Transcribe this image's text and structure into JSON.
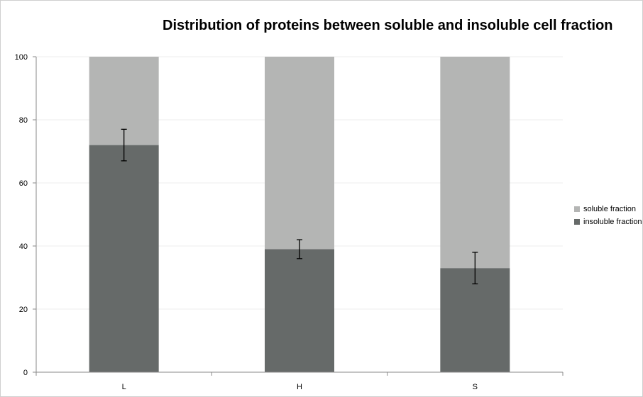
{
  "chart_data": {
    "type": "bar",
    "stacked": true,
    "title": "Distribution of proteins between soluble and insoluble cell fraction",
    "xlabel": "",
    "ylabel": "",
    "categories": [
      "L",
      "H",
      "S"
    ],
    "ylim": [
      0,
      100
    ],
    "yticks": [
      0,
      20,
      40,
      60,
      80,
      100
    ],
    "grid": true,
    "legend_position": "right",
    "series": [
      {
        "name": "insoluble fraction",
        "values": [
          72,
          39,
          33
        ],
        "error": [
          [
            67,
            77
          ],
          [
            36,
            42
          ],
          [
            28,
            38
          ]
        ],
        "color": "#666a69"
      },
      {
        "name": "soluble fraction",
        "values": [
          28,
          61,
          67
        ],
        "color": "#b4b5b4"
      }
    ]
  }
}
